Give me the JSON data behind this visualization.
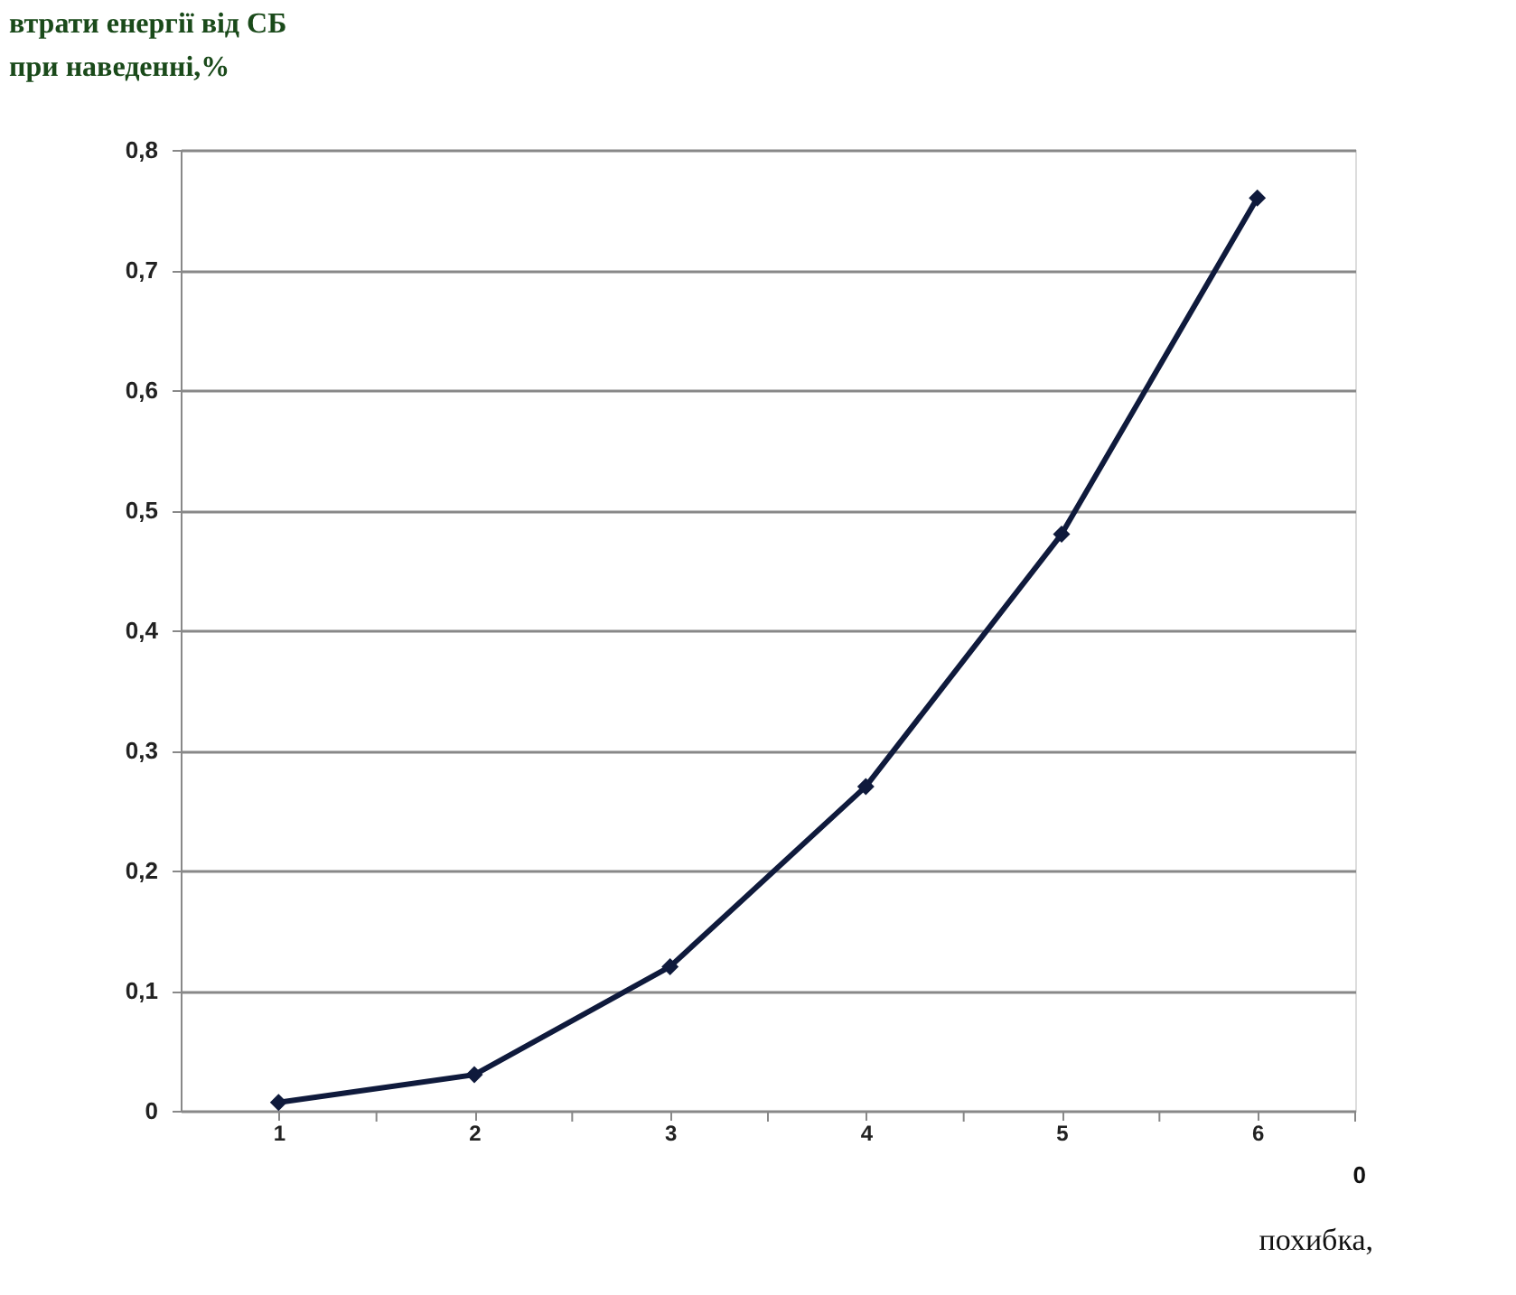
{
  "chart_data": {
    "type": "line",
    "ylabel": "втрати енергії від СБ\nпри наведенні,%",
    "xlabel": "похибка,$^{0}$",
    "categories": [
      "1",
      "2",
      "3",
      "4",
      "5",
      "6"
    ],
    "series": [
      {
        "color": "#0f1a3c",
        "values": [
          0.007,
          0.03,
          0.12,
          0.27,
          0.48,
          0.76
        ]
      }
    ],
    "ylim": [
      0,
      0.8
    ],
    "yticks": [
      0,
      {
        "value": 0.1,
        "label": "0,1"
      },
      {
        "value": 0.2,
        "label": "0,2"
      },
      {
        "value": 0.3,
        "label": "0,3"
      },
      {
        "value": 0.4,
        "label": "0,4"
      },
      {
        "value": 0.5,
        "label": "0,5"
      },
      {
        "value": 0.6,
        "label": "0,6"
      },
      {
        "value": 0.7,
        "label": "0,7"
      },
      {
        "value": 0.8,
        "label": "0,8"
      }
    ],
    "grid": "y",
    "marker": "diamond",
    "line_style": "solid"
  }
}
